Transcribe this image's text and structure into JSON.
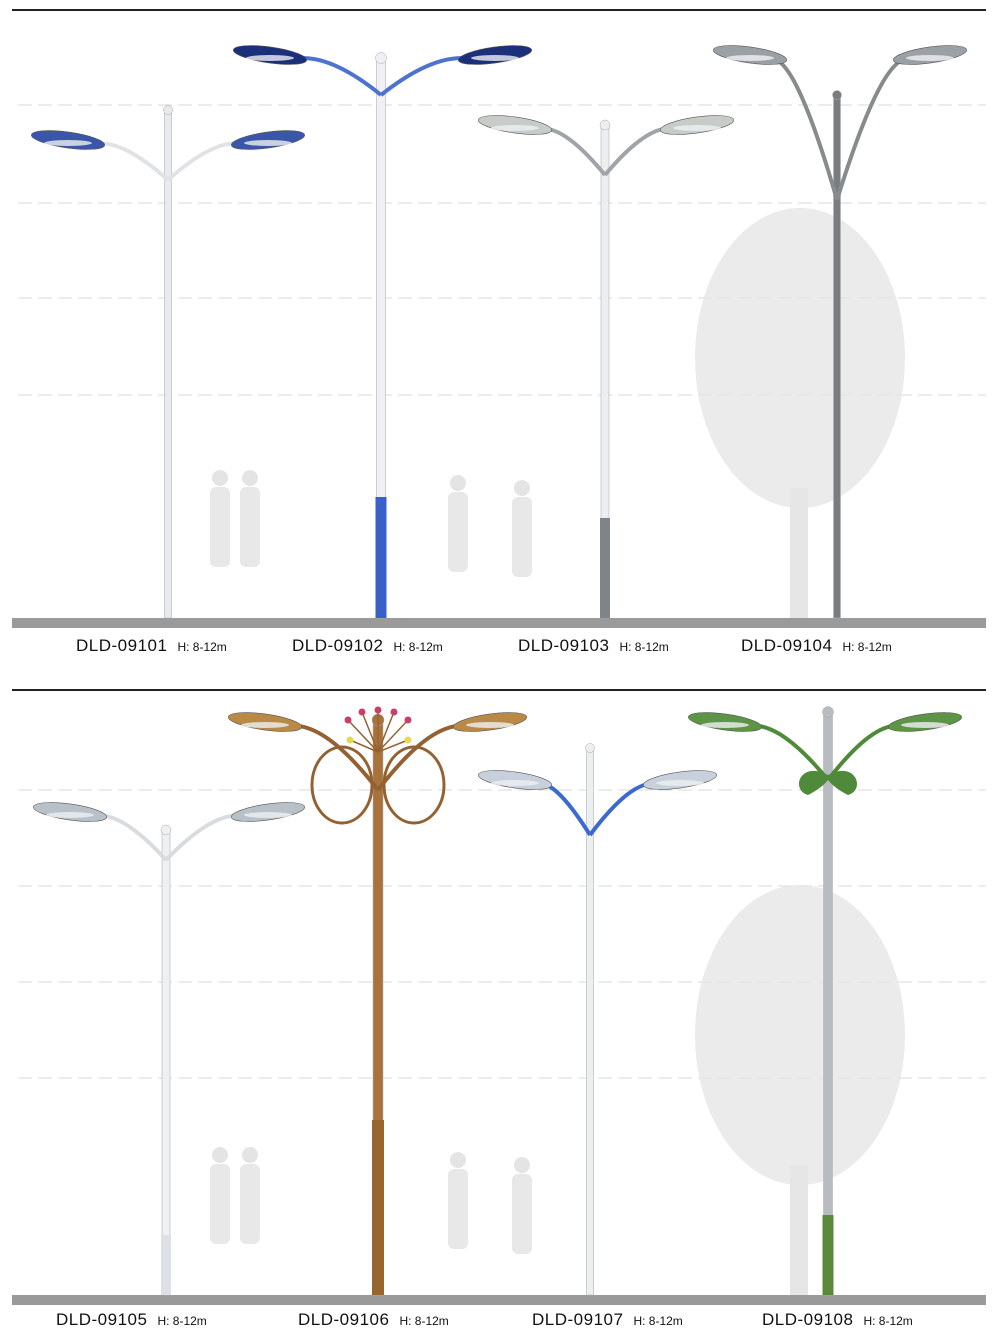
{
  "colors": {
    "rule": "#222222",
    "ground": "#9a9a9a",
    "grid": "#d8d8d8",
    "silhouette": "#e6e6e6"
  },
  "products": [
    {
      "code": "DLD-09101",
      "height": "H: 8-12m",
      "pole": "#e8eaee",
      "base": "#e8eaee",
      "arm": "#e0e2e6",
      "lamp": "#3a56a8"
    },
    {
      "code": "DLD-09102",
      "height": "H: 8-12m",
      "pole": "#f0f0f4",
      "base": "#3a5fc8",
      "arm": "#4d72d0",
      "lamp": "#1c2f7a"
    },
    {
      "code": "DLD-09103",
      "height": "H: 8-12m",
      "pole": "#eceef0",
      "base": "#808488",
      "arm": "#a0a4a8",
      "lamp": "#c8ccc8"
    },
    {
      "code": "DLD-09104",
      "height": "H: 8-12m",
      "pole": "#7a7d80",
      "base": "#7a7d80",
      "arm": "#888b8e",
      "lamp": "#9aa0a4"
    },
    {
      "code": "DLD-09105",
      "height": "H: 8-12m",
      "pole": "#eef0f2",
      "base": "#dde0e4",
      "arm": "#d8dce0",
      "lamp": "#b8c0c8"
    },
    {
      "code": "DLD-09106",
      "height": "H: 8-12m",
      "pole": "#a8733a",
      "base": "#9a6630",
      "arm": "#946232",
      "lamp": "#b98a45"
    },
    {
      "code": "DLD-09107",
      "height": "H: 8-12m",
      "pole": "#eceef0",
      "base": "#eceef0",
      "arm": "#3a6ad0",
      "lamp": "#c8d0dc"
    },
    {
      "code": "DLD-09108",
      "height": "H: 8-12m",
      "pole": "#b8bcc0",
      "base": "#5a8a3a",
      "arm": "#4f8a3a",
      "lamp": "#5e9446"
    }
  ]
}
